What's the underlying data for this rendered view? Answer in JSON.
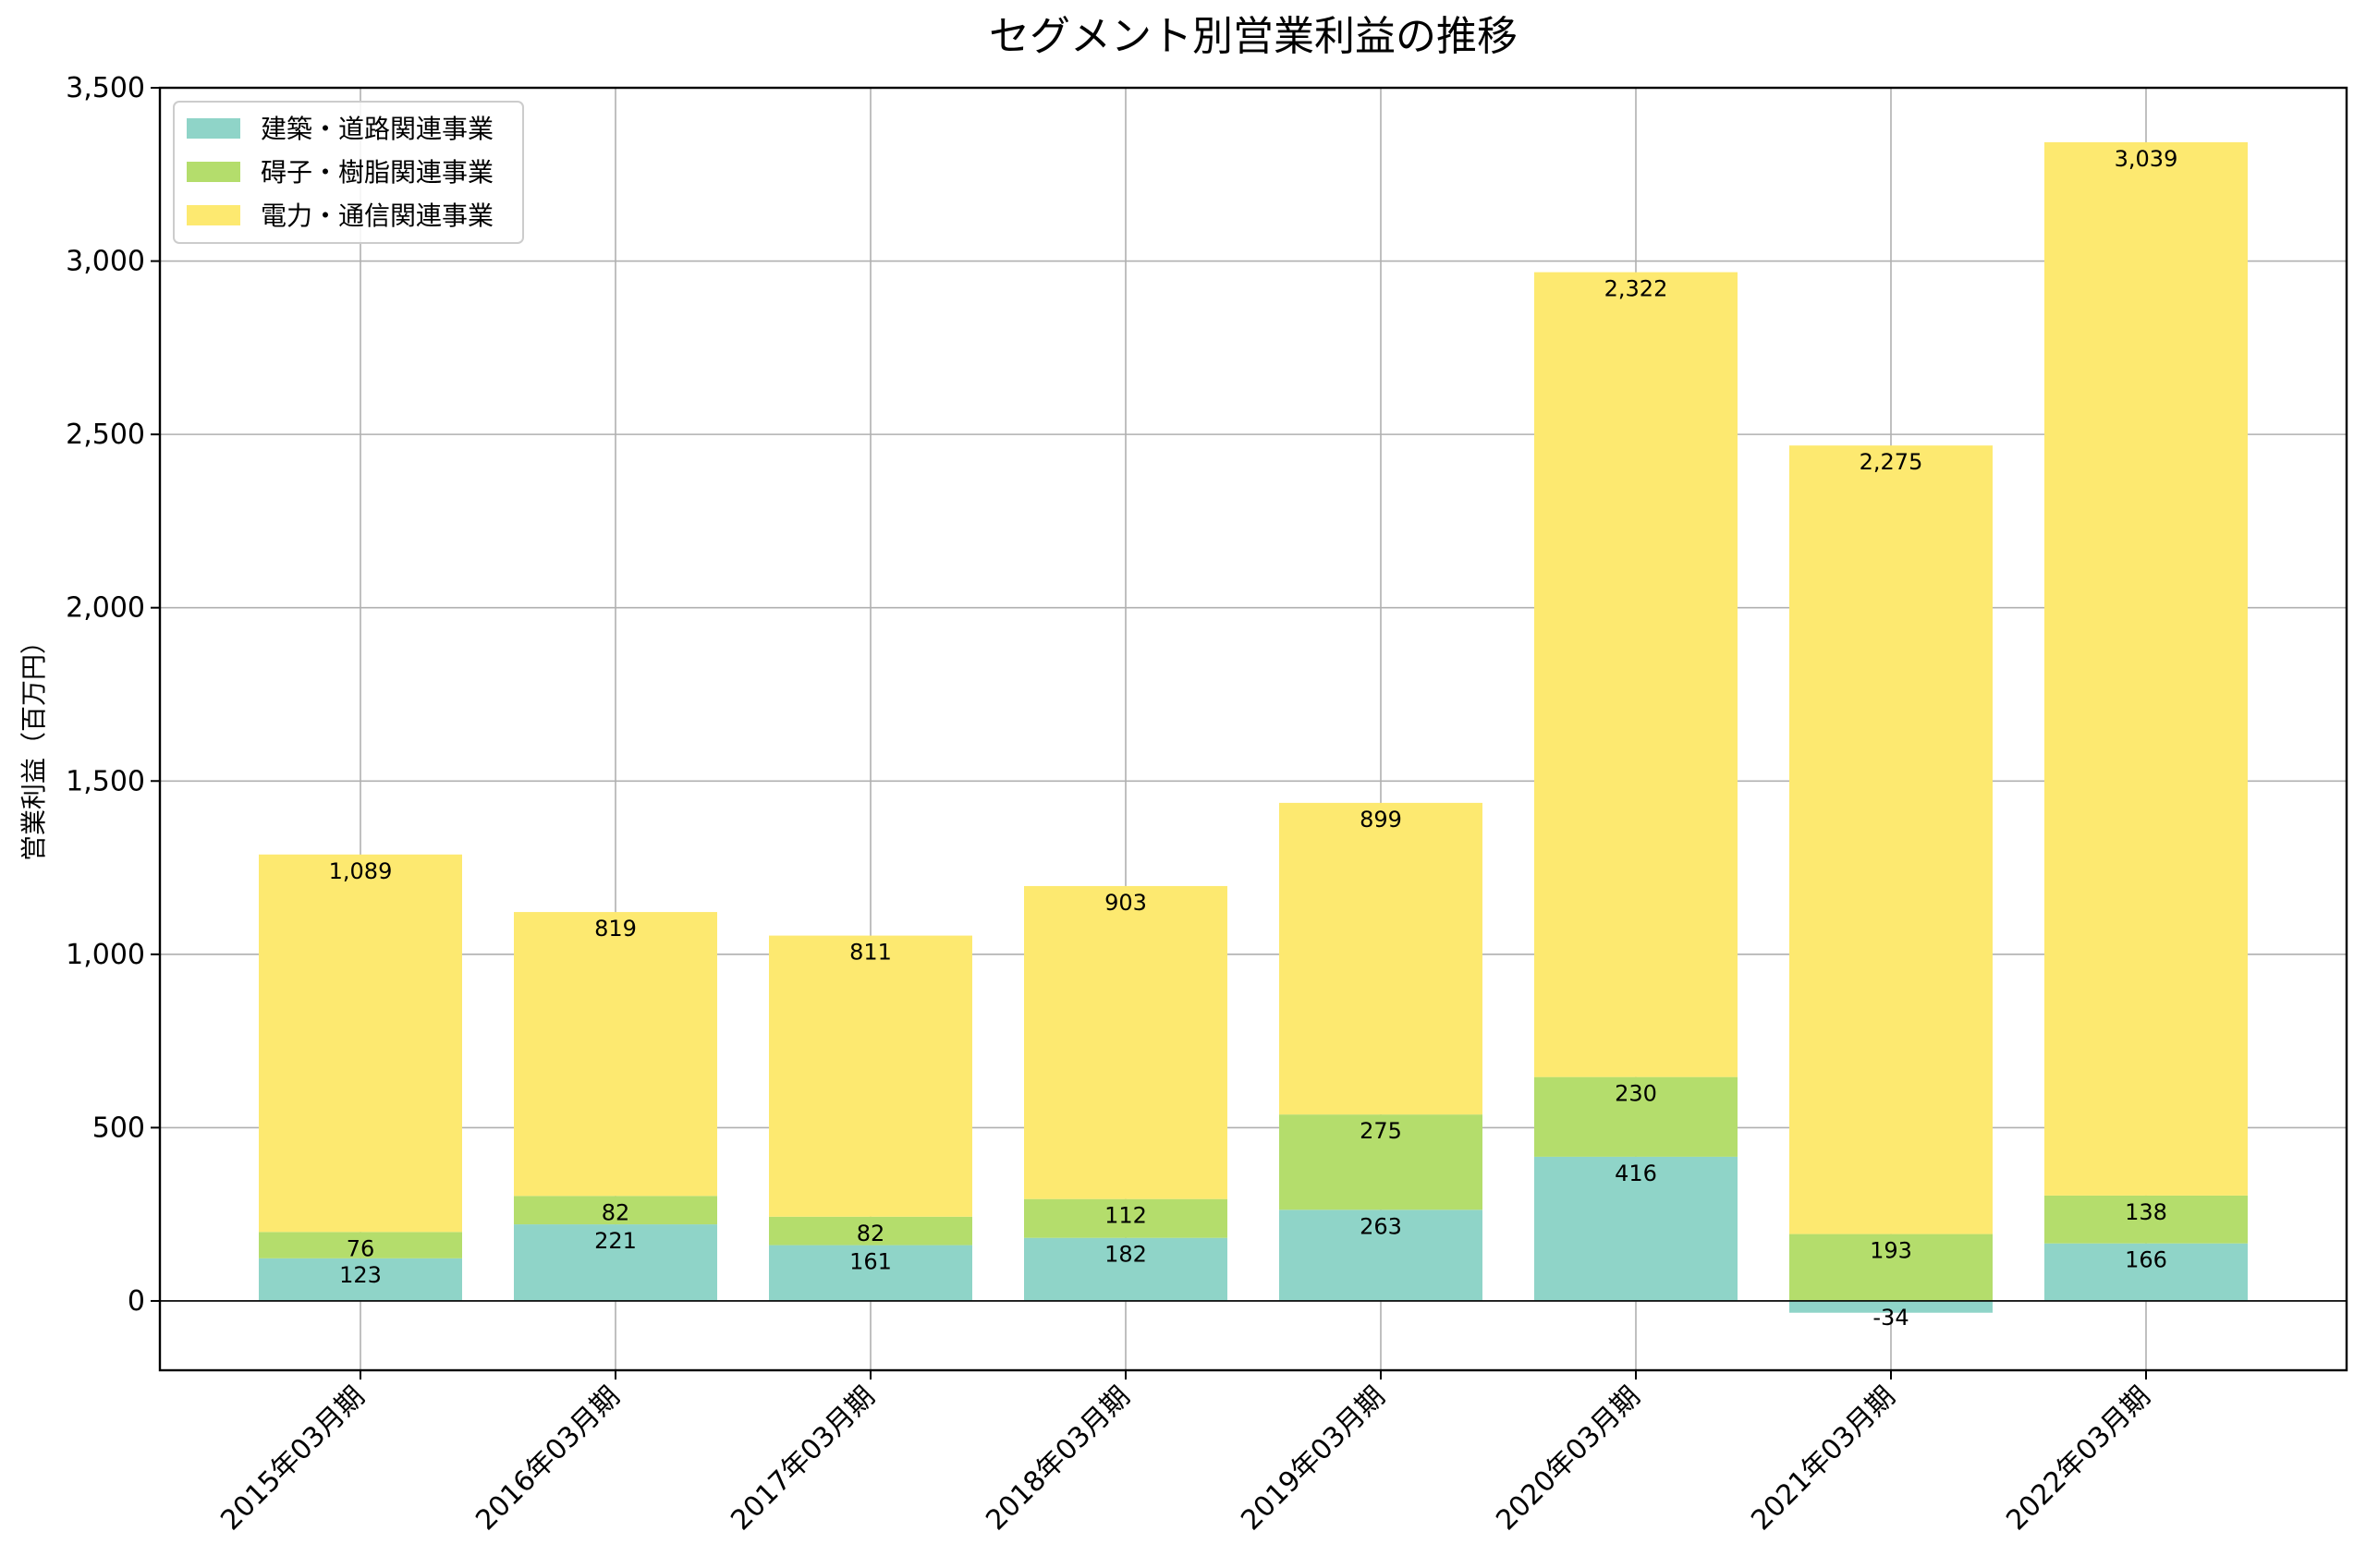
{
  "chart_data": {
    "type": "bar",
    "stacked": true,
    "title": "セグメント別営業利益の推移",
    "xlabel": "",
    "ylabel": "営業利益（百万円）",
    "categories": [
      "2015年03月期",
      "2016年03月期",
      "2017年03月期",
      "2018年03月期",
      "2019年03月期",
      "2020年03月期",
      "2021年03月期",
      "2022年03月期"
    ],
    "series": [
      {
        "name": "建築・道路関連事業",
        "color": "#8fd4c8",
        "values": [
          123,
          221,
          161,
          182,
          263,
          416,
          -34,
          166
        ],
        "labels": [
          "123",
          "221",
          "161",
          "182",
          "263",
          "416",
          "-34",
          "166"
        ]
      },
      {
        "name": "碍子・樹脂関連事業",
        "color": "#b4dd6c",
        "values": [
          76,
          82,
          82,
          112,
          275,
          230,
          193,
          138
        ],
        "labels": [
          "76",
          "82",
          "82",
          "112",
          "275",
          "230",
          "193",
          "138"
        ]
      },
      {
        "name": "電力・通信関連事業",
        "color": "#fde970",
        "values": [
          1089,
          819,
          811,
          903,
          899,
          2322,
          2275,
          3039
        ],
        "labels": [
          "1,089",
          "819",
          "811",
          "903",
          "899",
          "2,322",
          "2,275",
          "3,039"
        ]
      }
    ],
    "ylim": [
      -200,
      3500
    ],
    "yticks": [
      0,
      500,
      1000,
      1500,
      2000,
      2500,
      3000,
      3500
    ],
    "ytick_labels": [
      "0",
      "500",
      "1,000",
      "1,500",
      "2,000",
      "2,500",
      "3,000",
      "3,500"
    ],
    "grid": true,
    "legend_position": "top-left"
  }
}
